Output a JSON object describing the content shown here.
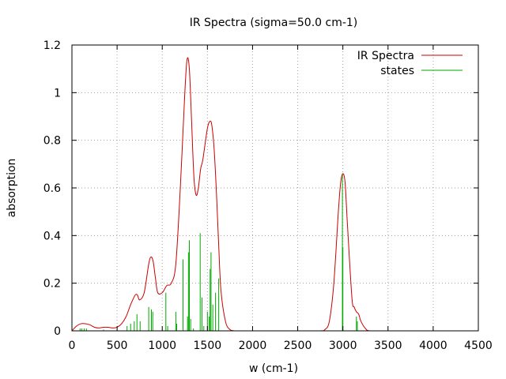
{
  "chart_data": {
    "type": "line",
    "title": "IR Spectra (sigma=50.0 cm-1)",
    "xlabel": "w (cm-1)",
    "ylabel": "absorption",
    "xlim": [
      0,
      4500
    ],
    "ylim": [
      0,
      1.2
    ],
    "xticks": [
      0,
      500,
      1000,
      1500,
      2000,
      2500,
      3000,
      3500,
      4000,
      4500
    ],
    "yticks": [
      0,
      0.2,
      0.4,
      0.6,
      0.8,
      1,
      1.2
    ],
    "xtick_labels": [
      "0",
      "500",
      "1000",
      "1500",
      "2000",
      "2500",
      "3000",
      "3500",
      "4000",
      "4500"
    ],
    "ytick_labels": [
      "0",
      "0.2",
      "0.4",
      "0.6",
      "0.8",
      "1",
      "1.2"
    ],
    "grid": true,
    "legend_position": "top-right",
    "series": [
      {
        "name": "IR Spectra",
        "style": "line",
        "color": "#cc0000",
        "x": [
          0,
          50,
          100,
          150,
          200,
          250,
          300,
          350,
          400,
          450,
          500,
          550,
          600,
          650,
          700,
          725,
          750,
          800,
          850,
          875,
          900,
          925,
          950,
          1000,
          1050,
          1100,
          1150,
          1200,
          1250,
          1275,
          1300,
          1325,
          1350,
          1375,
          1400,
          1425,
          1450,
          1500,
          1530,
          1550,
          1575,
          1600,
          1625,
          1650,
          1700,
          1750,
          1800,
          1900,
          2000,
          2500,
          2750,
          2800,
          2850,
          2900,
          2950,
          2975,
          3000,
          3025,
          3050,
          3100,
          3125,
          3150,
          3175,
          3200,
          3250,
          3300,
          3500,
          4000,
          4500
        ],
        "y": [
          0.0,
          0.02,
          0.03,
          0.03,
          0.025,
          0.015,
          0.012,
          0.015,
          0.015,
          0.012,
          0.015,
          0.03,
          0.06,
          0.11,
          0.15,
          0.15,
          0.13,
          0.16,
          0.28,
          0.31,
          0.29,
          0.22,
          0.16,
          0.16,
          0.19,
          0.2,
          0.28,
          0.6,
          1.0,
          1.14,
          1.1,
          0.88,
          0.65,
          0.57,
          0.6,
          0.68,
          0.72,
          0.85,
          0.88,
          0.86,
          0.76,
          0.58,
          0.36,
          0.17,
          0.04,
          0.005,
          0.0,
          0.0,
          0.0,
          0.0,
          0.0,
          0.005,
          0.04,
          0.2,
          0.5,
          0.62,
          0.66,
          0.62,
          0.45,
          0.14,
          0.1,
          0.08,
          0.07,
          0.04,
          0.01,
          0.0,
          0.0,
          0.0,
          0.0
        ]
      },
      {
        "name": "states",
        "style": "impulses",
        "color": "#00aa00",
        "x": [
          90,
          110,
          135,
          160,
          350,
          610,
          650,
          690,
          720,
          755,
          850,
          880,
          895,
          1040,
          1060,
          1150,
          1160,
          1230,
          1280,
          1290,
          1300,
          1315,
          1345,
          1420,
          1440,
          1460,
          1500,
          1520,
          1530,
          1540,
          1560,
          1590,
          1625,
          2995,
          3000,
          3150,
          3160
        ],
        "y": [
          0.01,
          0.01,
          0.01,
          0.01,
          0.005,
          0.02,
          0.03,
          0.04,
          0.07,
          0.04,
          0.1,
          0.09,
          0.08,
          0.16,
          0.02,
          0.08,
          0.03,
          0.3,
          0.06,
          0.33,
          0.38,
          0.05,
          0.01,
          0.41,
          0.14,
          0.02,
          0.08,
          0.06,
          0.26,
          0.33,
          0.11,
          0.16,
          0.22,
          0.66,
          0.35,
          0.06,
          0.04
        ]
      }
    ]
  }
}
